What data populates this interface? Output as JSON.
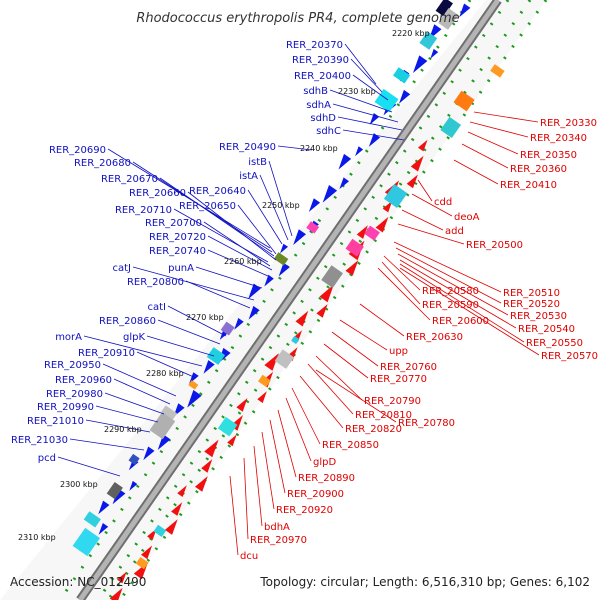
{
  "title": "Rhodococcus erythropolis PR4, complete genome",
  "footer": {
    "accession": "Accession: NC_012490",
    "summary": "Topology: circular; Length: 6,516,310 bp; Genes: 6,102"
  },
  "colors": {
    "forward_label": "#1010c0",
    "reverse_label": "#e00000",
    "forward_gene": "#0a18e8",
    "reverse_gene": "#f01010",
    "backbone": "#9a9a9a",
    "tick": "#1e9a1e"
  },
  "kbp_ticks": [
    "2220 kbp",
    "2230 kbp",
    "2240 kbp",
    "2250 kbp",
    "2260 kbp",
    "2270 kbp",
    "2280 kbp",
    "2290 kbp",
    "2300 kbp",
    "2310 kbp"
  ],
  "forward_labels": [
    "RER_20370",
    "RER_20390",
    "RER_20400",
    "sdhB",
    "sdhA",
    "sdhD",
    "sdhC",
    "RER_20490",
    "istB",
    "istA",
    "RER_20690",
    "RER_20680",
    "RER_20670",
    "RER_20660",
    "RER_20640",
    "RER_20710",
    "RER_20650",
    "RER_20700",
    "RER_20720",
    "RER_20740",
    "punA",
    "catJ",
    "RER_20800",
    "catI",
    "RER_20860",
    "glpK",
    "morA",
    "RER_20910",
    "RER_20950",
    "RER_20960",
    "RER_20980",
    "RER_20990",
    "RER_21010",
    "RER_21030",
    "pcd"
  ],
  "reverse_labels": [
    "RER_20330",
    "RER_20340",
    "RER_20350",
    "RER_20360",
    "RER_20410",
    "cdd",
    "deoA",
    "add",
    "RER_20500",
    "RER_20510",
    "RER_20580",
    "RER_20520",
    "RER_20590",
    "RER_20530",
    "RER_20600",
    "RER_20540",
    "RER_20550",
    "RER_20630",
    "RER_20570",
    "upp",
    "RER_20760",
    "RER_20770",
    "RER_20790",
    "RER_20810",
    "RER_20780",
    "RER_20820",
    "RER_20850",
    "glpD",
    "RER_20890",
    "RER_20900",
    "RER_20920",
    "bdhA",
    "RER_20970",
    "dcu"
  ]
}
